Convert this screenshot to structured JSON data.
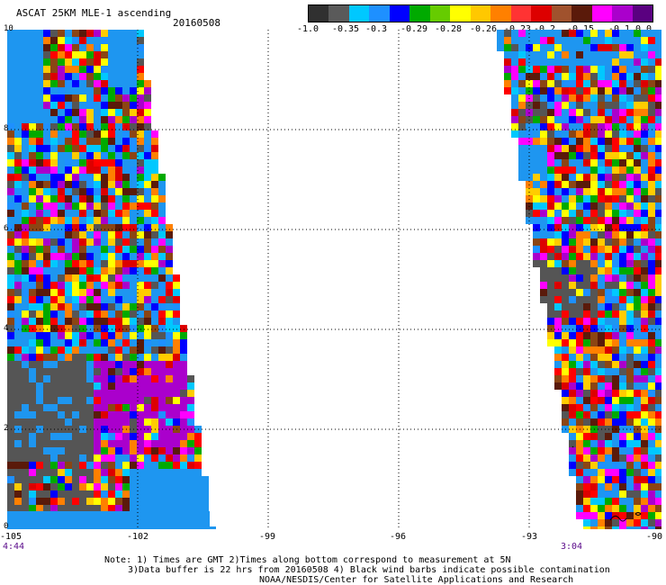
{
  "title": "ASCAT 25KM MLE-1 ascending",
  "date": "20160508",
  "colorbar": {
    "labels": [
      "-1.0",
      "-0.35",
      "-0.3",
      "-0.29",
      "-0.28",
      "-0.26",
      "-0.23",
      "-0.2",
      "-0.15",
      "-0.1",
      "0.0"
    ],
    "colors": [
      "#303030",
      "#5a5a5a",
      "#00c8ff",
      "#1e90ff",
      "#0000ff",
      "#00aa00",
      "#66cc00",
      "#ffff00",
      "#ffc800",
      "#ff8000",
      "#ff3333",
      "#dd0000",
      "#a0522d",
      "#5a1a0a",
      "#ff00ff",
      "#aa00cc",
      "#5a0080"
    ]
  },
  "axes": {
    "lat_labels": [
      "10",
      "8",
      "6",
      "4",
      "2",
      "0"
    ],
    "lon_labels": [
      "-105",
      "-102",
      "-99",
      "-96",
      "-93",
      "-90"
    ],
    "lat_range": [
      0,
      10
    ],
    "lon_range": [
      -105,
      -90
    ]
  },
  "times": {
    "left": "4:44",
    "right": "3:04"
  },
  "notes": {
    "line1": "Note: 1) Times are GMT 2)Times along bottom correspond to measurement at 5N",
    "line2": "3)Data buffer is 22 hrs from 20160508 4) Black wind barbs indicate possible contamination",
    "line3": "NOAA/NESDIS/Center for Satellite Applications and Research"
  },
  "palette": {
    "no_data": "#1e96f0",
    "gray": "#555555",
    "purple": "#aa00cc",
    "mixed": [
      "#ff0000",
      "#ff8000",
      "#ffcc00",
      "#ffff00",
      "#0000ff",
      "#1e90ff",
      "#00aa00",
      "#ff00ff",
      "#aa00cc",
      "#8b4513",
      "#5a1a0a",
      "#dd0000",
      "#00c8ff",
      "#555555"
    ]
  }
}
